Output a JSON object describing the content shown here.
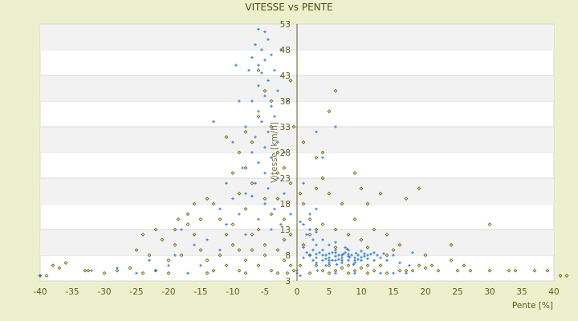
{
  "chart_data": {
    "type": "scatter",
    "title": "VITESSE vs PENTE",
    "xlabel": "Pente [%]",
    "ylabel": "Vitesse [km/h]",
    "xlim": [
      -40,
      40
    ],
    "ylim": [
      3,
      53
    ],
    "x_ticks": [
      -40,
      -35,
      -30,
      -25,
      -20,
      -15,
      -10,
      -5,
      0,
      5,
      10,
      15,
      20,
      25,
      30,
      35,
      40
    ],
    "y_ticks": [
      3,
      8,
      13,
      18,
      23,
      28,
      33,
      38,
      43,
      48,
      53
    ],
    "grid": true,
    "legend": "none",
    "series": [
      {
        "color": "#6b6b0a",
        "marker": "diamond",
        "points": [
          [
            -40,
            4
          ],
          [
            -39,
            4
          ],
          [
            -38,
            6
          ],
          [
            -37,
            5.5
          ],
          [
            -36,
            6.5
          ],
          [
            -33,
            5
          ],
          [
            -32.5,
            5
          ],
          [
            -30,
            4.5
          ],
          [
            -28,
            5
          ],
          [
            -26,
            5.5
          ],
          [
            -24,
            4.5
          ],
          [
            -23,
            8
          ],
          [
            -22,
            5
          ],
          [
            -20,
            7
          ],
          [
            -19,
            10
          ],
          [
            -18,
            8
          ],
          [
            -21,
            11
          ],
          [
            -22,
            13
          ],
          [
            -18.5,
            15
          ],
          [
            -17,
            14
          ],
          [
            -16,
            12
          ],
          [
            -15,
            9
          ],
          [
            -14,
            7
          ],
          [
            -13,
            5
          ],
          [
            -12,
            8
          ],
          [
            -11,
            6
          ],
          [
            -10,
            10
          ],
          [
            -9,
            5
          ],
          [
            -8,
            7
          ],
          [
            -7,
            9
          ],
          [
            -6,
            6
          ],
          [
            -5,
            8
          ],
          [
            -4,
            5
          ],
          [
            -3,
            9
          ],
          [
            -2,
            7
          ],
          [
            -1,
            6
          ],
          [
            -12,
            15
          ],
          [
            -13,
            18
          ],
          [
            -10,
            14
          ],
          [
            -9,
            20
          ],
          [
            -8,
            25
          ],
          [
            -7,
            30
          ],
          [
            -6,
            35
          ],
          [
            -5,
            40
          ],
          [
            -4,
            33
          ],
          [
            -3,
            28
          ],
          [
            -2,
            25
          ],
          [
            -1,
            22
          ],
          [
            -3,
            19
          ],
          [
            -4,
            16
          ],
          [
            -6,
            13
          ],
          [
            -8,
            17
          ],
          [
            -9,
            28
          ],
          [
            -10,
            24
          ],
          [
            -11,
            31
          ],
          [
            -7,
            22
          ],
          [
            -5,
            19
          ],
          [
            -2,
            15
          ],
          [
            -1,
            12
          ],
          [
            -0.5,
            33
          ],
          [
            -1,
            42
          ],
          [
            0.5,
            20
          ],
          [
            1,
            18
          ],
          [
            2,
            15
          ],
          [
            3,
            13
          ],
          [
            1,
            10
          ],
          [
            2,
            8
          ],
          [
            3,
            6
          ],
          [
            4,
            5
          ],
          [
            5,
            6
          ],
          [
            6,
            5
          ],
          [
            7,
            5.5
          ],
          [
            8,
            6
          ],
          [
            9,
            5
          ],
          [
            10,
            5.5
          ],
          [
            11,
            6
          ],
          [
            12,
            5
          ],
          [
            13,
            6
          ],
          [
            14,
            8
          ],
          [
            15,
            9
          ],
          [
            16,
            5
          ],
          [
            17,
            5
          ],
          [
            18,
            5
          ],
          [
            19,
            6
          ],
          [
            20,
            5.5
          ],
          [
            21,
            6
          ],
          [
            22,
            5
          ],
          [
            24,
            10
          ],
          [
            25,
            5
          ],
          [
            26,
            6
          ],
          [
            27,
            5
          ],
          [
            30,
            5
          ],
          [
            30,
            14
          ],
          [
            33,
            5
          ],
          [
            34,
            5
          ],
          [
            37,
            5
          ],
          [
            39,
            5
          ],
          [
            41,
            4
          ],
          [
            42,
            4
          ],
          [
            6,
            40
          ],
          [
            5,
            36
          ],
          [
            3,
            27
          ],
          [
            4,
            28
          ],
          [
            9,
            24
          ],
          [
            10,
            21
          ],
          [
            11,
            18
          ],
          [
            13,
            20
          ],
          [
            17,
            19
          ],
          [
            19,
            21
          ],
          [
            14,
            12
          ],
          [
            12,
            13
          ],
          [
            10,
            11
          ],
          [
            8,
            12
          ],
          [
            6,
            13
          ],
          [
            4,
            14
          ],
          [
            2,
            12
          ],
          [
            1,
            30
          ],
          [
            4,
            23
          ],
          [
            3,
            21
          ],
          [
            5,
            20
          ],
          [
            7,
            18
          ],
          [
            9,
            15
          ],
          [
            -0.5,
            5
          ],
          [
            -1.5,
            4.5
          ],
          [
            0.5,
            6
          ],
          [
            6,
            9.5
          ],
          [
            11,
            9.5
          ],
          [
            16,
            10
          ],
          [
            20,
            8
          ],
          [
            24,
            7
          ],
          [
            -19,
            13
          ],
          [
            -17,
            16
          ],
          [
            -15,
            15
          ],
          [
            -16,
            18
          ],
          [
            -14,
            19
          ],
          [
            -6,
            44
          ],
          [
            -4,
            38
          ],
          [
            -8,
            32
          ],
          [
            -3,
            24
          ],
          [
            -7,
            12
          ],
          [
            -5,
            10
          ],
          [
            -2,
            11
          ],
          [
            -9,
            9
          ],
          [
            -11,
            12
          ],
          [
            -14,
            4.5
          ],
          [
            -20,
            4.5
          ],
          [
            -25,
            9
          ],
          [
            -24,
            12
          ],
          [
            -8,
            4.5
          ],
          [
            -3,
            4.5
          ],
          [
            2,
            4.5
          ],
          [
            5,
            4.5
          ],
          [
            8,
            4.5
          ],
          [
            11,
            4.5
          ],
          [
            14,
            4.5
          ]
        ]
      },
      {
        "color": "#3b86d6",
        "marker": "plus",
        "points": [
          [
            -6,
            52
          ],
          [
            -5,
            51.5
          ],
          [
            -4.5,
            50
          ],
          [
            -6.5,
            49
          ],
          [
            -5.5,
            48
          ],
          [
            -4,
            47
          ],
          [
            -7,
            46.5
          ],
          [
            -5,
            46
          ],
          [
            -6,
            45
          ],
          [
            -3.5,
            44
          ],
          [
            -5.5,
            43.5
          ],
          [
            -7.5,
            44
          ],
          [
            -4.5,
            42
          ],
          [
            -6,
            41
          ],
          [
            -3,
            40
          ],
          [
            -5,
            39
          ],
          [
            -7,
            38
          ],
          [
            -4,
            37
          ],
          [
            -6,
            36
          ],
          [
            -3.5,
            35
          ],
          [
            -5.5,
            34
          ],
          [
            -8,
            33
          ],
          [
            -4.5,
            32
          ],
          [
            -6.5,
            31
          ],
          [
            -3,
            30
          ],
          [
            -5,
            29
          ],
          [
            -7,
            28
          ],
          [
            -4,
            27
          ],
          [
            -6,
            26
          ],
          [
            -8.5,
            25
          ],
          [
            -5,
            24
          ],
          [
            -3,
            23
          ],
          [
            -6.5,
            22
          ],
          [
            -4.5,
            21
          ],
          [
            -2,
            20
          ],
          [
            -7,
            19.5
          ],
          [
            -5,
            18
          ],
          [
            -3.5,
            17
          ],
          [
            -1,
            16
          ],
          [
            -6,
            15
          ],
          [
            -2.5,
            14
          ],
          [
            -4,
            13
          ],
          [
            -8,
            12
          ],
          [
            -9,
            38
          ],
          [
            -10,
            30
          ],
          [
            -13,
            34
          ],
          [
            -9.5,
            45
          ],
          [
            -2.5,
            48
          ],
          [
            -1.5,
            38
          ],
          [
            -2,
            28
          ],
          [
            -8,
            20
          ],
          [
            -9,
            16
          ],
          [
            -11,
            14
          ],
          [
            -12,
            9
          ],
          [
            -14,
            11
          ],
          [
            -16,
            10
          ],
          [
            -18,
            13
          ],
          [
            -19,
            8
          ],
          [
            -20,
            6
          ],
          [
            -22,
            5
          ],
          [
            -23,
            7
          ],
          [
            -15,
            6
          ],
          [
            -17,
            4.5
          ],
          [
            -25,
            4.5
          ],
          [
            -32,
            5
          ],
          [
            -40,
            4
          ],
          [
            -28,
            5.5
          ],
          [
            -12,
            17
          ],
          [
            -10,
            19
          ],
          [
            -11,
            22
          ],
          [
            0,
            5
          ],
          [
            0,
            4.5
          ],
          [
            0.5,
            4
          ],
          [
            1,
            14
          ],
          [
            2,
            13
          ],
          [
            1.5,
            12
          ],
          [
            3,
            12.5
          ],
          [
            2.5,
            11
          ],
          [
            4,
            11
          ],
          [
            5,
            10
          ],
          [
            3,
            10
          ],
          [
            6,
            10.5
          ],
          [
            1,
            9.5
          ],
          [
            0.5,
            14.5
          ],
          [
            2,
            16
          ],
          [
            3,
            17
          ],
          [
            4,
            27
          ],
          [
            6,
            33
          ],
          [
            3,
            32
          ],
          [
            1,
            22
          ],
          [
            2,
            8
          ],
          [
            3,
            7.5
          ],
          [
            3.5,
            8.5
          ],
          [
            4,
            7
          ],
          [
            4.5,
            8
          ],
          [
            5,
            7.5
          ],
          [
            5.5,
            8.5
          ],
          [
            6,
            7
          ],
          [
            6.5,
            8
          ],
          [
            7,
            7.5
          ],
          [
            7.5,
            8.5
          ],
          [
            8,
            7
          ],
          [
            8.5,
            8
          ],
          [
            9,
            7.5
          ],
          [
            9.5,
            8
          ],
          [
            10,
            7
          ],
          [
            10.5,
            7.8
          ],
          [
            11,
            7.3
          ],
          [
            11.5,
            8.2
          ],
          [
            12,
            7
          ],
          [
            3,
            6.5
          ],
          [
            4,
            9
          ],
          [
            5,
            6.5
          ],
          [
            6,
            9
          ],
          [
            7,
            6.5
          ],
          [
            8,
            9
          ],
          [
            9,
            6.5
          ],
          [
            10,
            8.8
          ],
          [
            12.5,
            8
          ],
          [
            13,
            7.5
          ],
          [
            14,
            7
          ],
          [
            15,
            8
          ],
          [
            16,
            6.5
          ],
          [
            17.5,
            6
          ],
          [
            18,
            8.5
          ],
          [
            4.5,
            6
          ],
          [
            7.5,
            9.5
          ],
          [
            2.5,
            9
          ],
          [
            5.5,
            7
          ],
          [
            6.5,
            7.2
          ],
          [
            7.2,
            8.2
          ],
          [
            8.2,
            7.6
          ],
          [
            9.2,
            8.4
          ],
          [
            3.2,
            5
          ],
          [
            6,
            4.5
          ],
          [
            9,
            4.5
          ],
          [
            13,
            4.5
          ],
          [
            15,
            4.5
          ],
          [
            17,
            4.5
          ],
          [
            4,
            8
          ],
          [
            5,
            8.3
          ],
          [
            6,
            7.8
          ],
          [
            7,
            8
          ],
          [
            8,
            8.2
          ],
          [
            9,
            7
          ],
          [
            10,
            7.6
          ],
          [
            11,
            8
          ],
          [
            5,
            7
          ],
          [
            6,
            8.5
          ],
          [
            7,
            7
          ],
          [
            8,
            7.8
          ],
          [
            4.5,
            7.3
          ],
          [
            9.5,
            7.2
          ],
          [
            10.5,
            8.3
          ],
          [
            3,
            8.2
          ],
          [
            2.5,
            7
          ],
          [
            1.5,
            8.5
          ],
          [
            1,
            7.5
          ],
          [
            12,
            8.5
          ],
          [
            13.5,
            8.3
          ],
          [
            6.2,
            6.2
          ],
          [
            8.8,
            6.2
          ],
          [
            7.8,
            9.2
          ]
        ]
      }
    ]
  }
}
